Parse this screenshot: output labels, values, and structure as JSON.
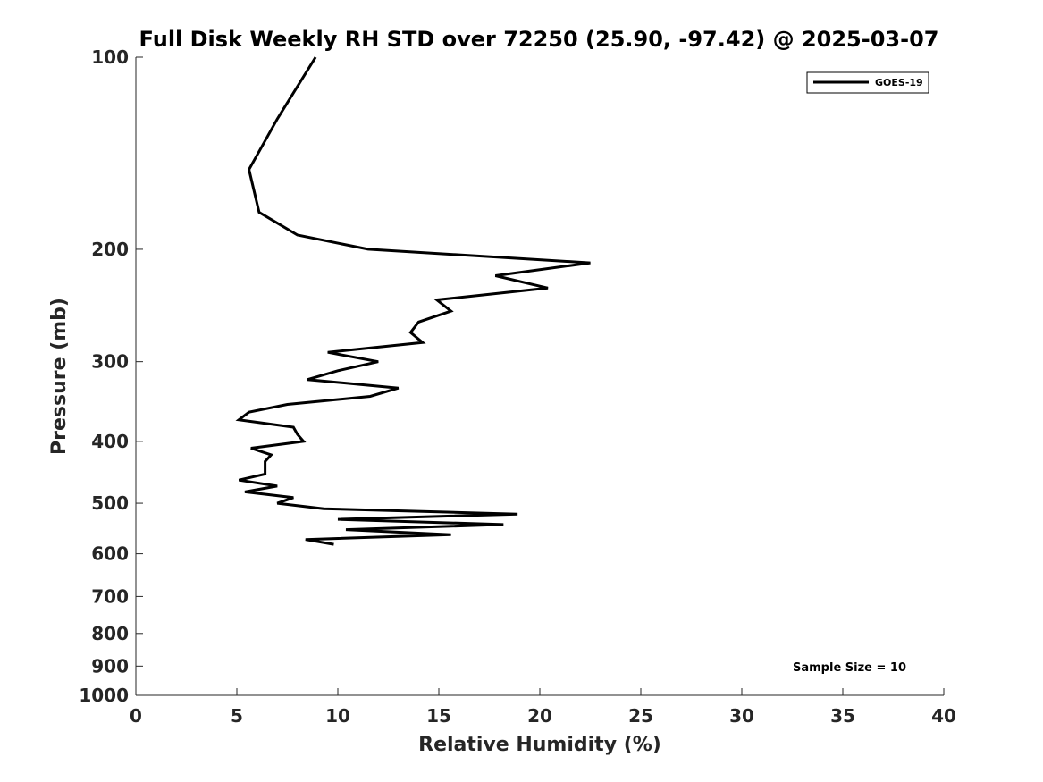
{
  "chart_data": {
    "type": "line",
    "title": "Full Disk Weekly RH STD over 72250 (25.90, -97.42) @ 2025-03-07",
    "xlabel": "Relative Humidity (%)",
    "ylabel": "Pressure (mb)",
    "xlim": [
      0,
      40
    ],
    "ylim": [
      100,
      1000
    ],
    "y_scale": "log",
    "y_reversed": true,
    "grid": false,
    "legend_position": "top-right",
    "x_ticks": [
      0,
      5,
      10,
      15,
      20,
      25,
      30,
      35,
      40
    ],
    "x_tick_labels": [
      "0",
      "5",
      "10",
      "15",
      "20",
      "25",
      "30",
      "35",
      "40"
    ],
    "y_ticks": [
      100,
      200,
      300,
      400,
      500,
      600,
      700,
      800,
      900,
      1000
    ],
    "y_tick_labels": [
      "100",
      "200",
      "300",
      "400",
      "500",
      "600",
      "700",
      "800",
      "900",
      "1000"
    ],
    "series": [
      {
        "name": "GOES-19",
        "color": "#000000",
        "points": [
          [
            8.9,
            100
          ],
          [
            7.0,
            125
          ],
          [
            5.6,
            150
          ],
          [
            6.1,
            175
          ],
          [
            8.0,
            190
          ],
          [
            11.5,
            200
          ],
          [
            22.5,
            210
          ],
          [
            17.8,
            220
          ],
          [
            20.4,
            230
          ],
          [
            14.9,
            240
          ],
          [
            15.6,
            250
          ],
          [
            14.0,
            260
          ],
          [
            13.6,
            270
          ],
          [
            14.2,
            280
          ],
          [
            9.5,
            290
          ],
          [
            12.0,
            300
          ],
          [
            10.0,
            310
          ],
          [
            8.5,
            320
          ],
          [
            13.0,
            330
          ],
          [
            11.6,
            340
          ],
          [
            7.5,
            350
          ],
          [
            5.6,
            360
          ],
          [
            5.1,
            370
          ],
          [
            7.8,
            380
          ],
          [
            8.0,
            390
          ],
          [
            8.3,
            400
          ],
          [
            5.7,
            410
          ],
          [
            6.7,
            420
          ],
          [
            6.4,
            430
          ],
          [
            6.4,
            440
          ],
          [
            6.4,
            450
          ],
          [
            5.1,
            460
          ],
          [
            7.0,
            470
          ],
          [
            5.4,
            480
          ],
          [
            7.8,
            490
          ],
          [
            7.0,
            500
          ],
          [
            9.3,
            510
          ],
          [
            18.9,
            520
          ],
          [
            10.0,
            530
          ],
          [
            18.2,
            540
          ],
          [
            10.4,
            550
          ],
          [
            15.6,
            560
          ],
          [
            8.4,
            570
          ],
          [
            9.8,
            580
          ]
        ]
      }
    ],
    "annotations": [
      {
        "text": "Sample Size = 10"
      }
    ]
  }
}
